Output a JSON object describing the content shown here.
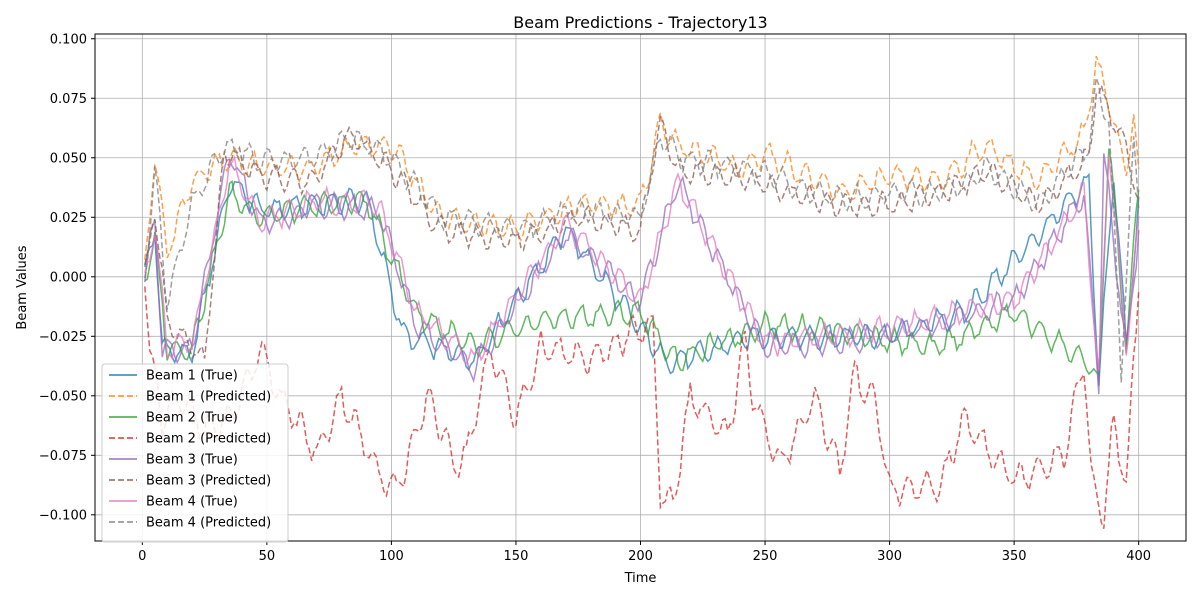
{
  "chart_data": {
    "type": "line",
    "title": "Beam Predictions - Trajectory13",
    "xlabel": "Time",
    "ylabel": "Beam Values",
    "xlim": [
      -19,
      419
    ],
    "ylim": [
      -0.111,
      0.102
    ],
    "xticks": [
      0,
      50,
      100,
      150,
      200,
      250,
      300,
      350,
      400
    ],
    "yticks": [
      -0.1,
      -0.075,
      -0.05,
      -0.025,
      0.0,
      0.025,
      0.05,
      0.075,
      0.1
    ],
    "xtick_labels": [
      "0",
      "50",
      "100",
      "150",
      "200",
      "250",
      "300",
      "350",
      "400"
    ],
    "ytick_labels": [
      "−0.100",
      "−0.075",
      "−0.050",
      "−0.025",
      "0.000",
      "0.025",
      "0.050",
      "0.075",
      "0.100"
    ],
    "grid": true,
    "legend_position": "lower-left",
    "x_range": [
      1,
      400
    ],
    "series": [
      {
        "name": "Beam 1 (True)",
        "color": "#1f77b4",
        "style": "solid",
        "anchors": [
          [
            1,
            0.0
          ],
          [
            5,
            0.02
          ],
          [
            8,
            -0.03
          ],
          [
            20,
            -0.033
          ],
          [
            35,
            0.04
          ],
          [
            48,
            0.028
          ],
          [
            67,
            0.03
          ],
          [
            90,
            0.033
          ],
          [
            105,
            -0.025
          ],
          [
            133,
            -0.035
          ],
          [
            170,
            0.02
          ],
          [
            200,
            -0.022
          ],
          [
            210,
            -0.035
          ],
          [
            216,
            -0.035
          ],
          [
            245,
            -0.025
          ],
          [
            300,
            -0.025
          ],
          [
            330,
            -0.015
          ],
          [
            380,
            0.04
          ],
          [
            384,
            -0.045
          ],
          [
            390,
            0.045
          ],
          [
            395,
            -0.03
          ],
          [
            400,
            0.03
          ]
        ]
      },
      {
        "name": "Beam 1 (Predicted)",
        "color": "#ff7f0e",
        "style": "dashed",
        "anchors": [
          [
            1,
            0.005
          ],
          [
            5,
            0.05
          ],
          [
            10,
            0.01
          ],
          [
            20,
            0.04
          ],
          [
            33,
            0.05
          ],
          [
            48,
            0.046
          ],
          [
            68,
            0.045
          ],
          [
            84,
            0.055
          ],
          [
            100,
            0.055
          ],
          [
            120,
            0.025
          ],
          [
            150,
            0.02
          ],
          [
            175,
            0.03
          ],
          [
            200,
            0.03
          ],
          [
            208,
            0.065
          ],
          [
            215,
            0.055
          ],
          [
            240,
            0.045
          ],
          [
            250,
            0.052
          ],
          [
            280,
            0.035
          ],
          [
            300,
            0.042
          ],
          [
            320,
            0.04
          ],
          [
            338,
            0.055
          ],
          [
            360,
            0.04
          ],
          [
            378,
            0.06
          ],
          [
            383,
            0.091
          ],
          [
            390,
            0.065
          ],
          [
            395,
            0.045
          ],
          [
            398,
            0.068
          ],
          [
            400,
            0.04
          ]
        ]
      },
      {
        "name": "Beam 2 (True)",
        "color": "#2ca02c",
        "style": "solid",
        "anchors": [
          [
            1,
            0.0
          ],
          [
            5,
            0.015
          ],
          [
            10,
            -0.03
          ],
          [
            20,
            -0.03
          ],
          [
            35,
            0.035
          ],
          [
            48,
            0.025
          ],
          [
            70,
            0.03
          ],
          [
            90,
            0.032
          ],
          [
            110,
            -0.015
          ],
          [
            133,
            -0.03
          ],
          [
            160,
            -0.018
          ],
          [
            200,
            -0.015
          ],
          [
            210,
            -0.03
          ],
          [
            215,
            -0.035
          ],
          [
            250,
            -0.02
          ],
          [
            280,
            -0.023
          ],
          [
            318,
            -0.03
          ],
          [
            350,
            -0.015
          ],
          [
            378,
            -0.035
          ],
          [
            384,
            -0.045
          ],
          [
            388,
            0.058
          ],
          [
            395,
            -0.03
          ],
          [
            400,
            0.039
          ]
        ]
      },
      {
        "name": "Beam 2 (Predicted)",
        "color": "#d62728",
        "style": "dashed",
        "anchors": [
          [
            1,
            0.0
          ],
          [
            3,
            -0.03
          ],
          [
            8,
            -0.06
          ],
          [
            15,
            -0.05
          ],
          [
            25,
            -0.065
          ],
          [
            35,
            -0.06
          ],
          [
            48,
            -0.03
          ],
          [
            55,
            -0.05
          ],
          [
            65,
            -0.065
          ],
          [
            70,
            -0.075
          ],
          [
            80,
            -0.05
          ],
          [
            90,
            -0.072
          ],
          [
            100,
            -0.09
          ],
          [
            105,
            -0.082
          ],
          [
            115,
            -0.05
          ],
          [
            125,
            -0.078
          ],
          [
            130,
            -0.075
          ],
          [
            140,
            -0.03
          ],
          [
            150,
            -0.06
          ],
          [
            160,
            -0.03
          ],
          [
            180,
            -0.035
          ],
          [
            195,
            -0.025
          ],
          [
            205,
            -0.02
          ],
          [
            208,
            -0.092
          ],
          [
            213,
            -0.095
          ],
          [
            220,
            -0.05
          ],
          [
            235,
            -0.068
          ],
          [
            242,
            -0.025
          ],
          [
            245,
            -0.05
          ],
          [
            256,
            -0.08
          ],
          [
            270,
            -0.05
          ],
          [
            280,
            -0.082
          ],
          [
            286,
            -0.04
          ],
          [
            295,
            -0.055
          ],
          [
            300,
            -0.09
          ],
          [
            320,
            -0.088
          ],
          [
            330,
            -0.06
          ],
          [
            350,
            -0.085
          ],
          [
            370,
            -0.075
          ],
          [
            378,
            -0.035
          ],
          [
            381,
            -0.085
          ],
          [
            386,
            -0.101
          ],
          [
            390,
            -0.06
          ],
          [
            395,
            -0.09
          ],
          [
            400,
            0.0
          ]
        ]
      },
      {
        "name": "Beam 3 (True)",
        "color": "#9467bd",
        "style": "solid",
        "anchors": [
          [
            1,
            0.0
          ],
          [
            5,
            0.025
          ],
          [
            8,
            -0.032
          ],
          [
            20,
            -0.03
          ],
          [
            35,
            0.052
          ],
          [
            48,
            0.022
          ],
          [
            70,
            0.03
          ],
          [
            95,
            0.028
          ],
          [
            110,
            -0.02
          ],
          [
            133,
            -0.038
          ],
          [
            170,
            0.018
          ],
          [
            200,
            -0.01
          ],
          [
            215,
            0.04
          ],
          [
            250,
            -0.03
          ],
          [
            300,
            -0.025
          ],
          [
            350,
            -0.01
          ],
          [
            378,
            0.035
          ],
          [
            384,
            -0.045
          ],
          [
            386,
            0.052
          ],
          [
            395,
            -0.032
          ],
          [
            400,
            0.02
          ]
        ]
      },
      {
        "name": "Beam 3 (Predicted)",
        "color": "#8c564b",
        "style": "dashed",
        "anchors": [
          [
            1,
            0.0
          ],
          [
            5,
            0.03
          ],
          [
            10,
            -0.02
          ],
          [
            25,
            -0.035
          ],
          [
            33,
            0.053
          ],
          [
            48,
            0.042
          ],
          [
            68,
            0.04
          ],
          [
            83,
            0.06
          ],
          [
            100,
            0.045
          ],
          [
            120,
            0.02
          ],
          [
            150,
            0.015
          ],
          [
            175,
            0.025
          ],
          [
            200,
            0.02
          ],
          [
            208,
            0.065
          ],
          [
            215,
            0.045
          ],
          [
            245,
            0.04
          ],
          [
            280,
            0.03
          ],
          [
            300,
            0.03
          ],
          [
            320,
            0.035
          ],
          [
            340,
            0.045
          ],
          [
            360,
            0.03
          ],
          [
            380,
            0.05
          ],
          [
            383,
            0.081
          ],
          [
            388,
            0.069
          ],
          [
            395,
            0.055
          ],
          [
            400,
            0.03
          ]
        ]
      },
      {
        "name": "Beam 4 (True)",
        "color": "#e377c2",
        "style": "solid",
        "anchors": [
          [
            1,
            0.0
          ],
          [
            5,
            0.02
          ],
          [
            10,
            -0.03
          ],
          [
            20,
            -0.028
          ],
          [
            35,
            0.048
          ],
          [
            48,
            0.023
          ],
          [
            70,
            0.032
          ],
          [
            95,
            0.03
          ],
          [
            110,
            -0.015
          ],
          [
            133,
            -0.035
          ],
          [
            170,
            0.022
          ],
          [
            200,
            -0.01
          ],
          [
            215,
            0.04
          ],
          [
            250,
            -0.028
          ],
          [
            300,
            -0.022
          ],
          [
            350,
            -0.01
          ],
          [
            378,
            0.035
          ],
          [
            384,
            -0.043
          ],
          [
            388,
            0.055
          ],
          [
            395,
            -0.03
          ],
          [
            400,
            0.022
          ]
        ]
      },
      {
        "name": "Beam 4 (Predicted)",
        "color": "#7f7f7f",
        "style": "dashed",
        "anchors": [
          [
            1,
            0.0
          ],
          [
            5,
            0.045
          ],
          [
            10,
            -0.01
          ],
          [
            20,
            0.03
          ],
          [
            33,
            0.055
          ],
          [
            48,
            0.048
          ],
          [
            68,
            0.05
          ],
          [
            83,
            0.059
          ],
          [
            100,
            0.05
          ],
          [
            120,
            0.025
          ],
          [
            150,
            0.02
          ],
          [
            175,
            0.028
          ],
          [
            200,
            0.025
          ],
          [
            208,
            0.06
          ],
          [
            215,
            0.05
          ],
          [
            245,
            0.045
          ],
          [
            280,
            0.032
          ],
          [
            300,
            0.035
          ],
          [
            320,
            0.035
          ],
          [
            340,
            0.045
          ],
          [
            360,
            0.03
          ],
          [
            380,
            0.055
          ],
          [
            383,
            0.08
          ],
          [
            388,
            0.065
          ],
          [
            393,
            -0.04
          ],
          [
            398,
            0.055
          ],
          [
            400,
            0.03
          ]
        ]
      }
    ]
  }
}
